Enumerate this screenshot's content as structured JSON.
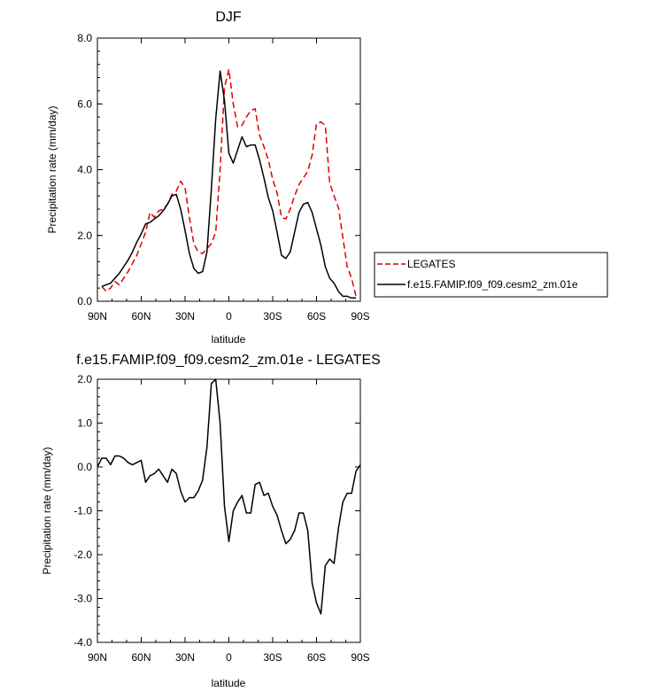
{
  "chart_data": [
    {
      "type": "line",
      "title": "DJF",
      "xlabel": "latitude",
      "ylabel": "Precipitation rate (mm/day)",
      "x_ticks": [
        "90N",
        "60N",
        "30N",
        "0",
        "30S",
        "60S",
        "90S"
      ],
      "y_ticks": [
        "0.0",
        "2.0",
        "4.0",
        "6.0",
        "8.0"
      ],
      "xlim": [
        90,
        -90
      ],
      "ylim": [
        0,
        8
      ],
      "legend_position": "right",
      "series": [
        {
          "name": "LEGATES",
          "color": "#dd0000",
          "dash": "dashed",
          "x": [
            87,
            84,
            81,
            78,
            75,
            72,
            69,
            66,
            63,
            60,
            57,
            54,
            51,
            48,
            45,
            42,
            39,
            36,
            33,
            30,
            27,
            24,
            21,
            18,
            15,
            12,
            9,
            6,
            3,
            0,
            -3,
            -6,
            -9,
            -12,
            -15,
            -18,
            -21,
            -24,
            -27,
            -30,
            -33,
            -36,
            -39,
            -42,
            -45,
            -48,
            -51,
            -54,
            -57,
            -60,
            -63,
            -66,
            -69,
            -72,
            -75,
            -78,
            -81,
            -84,
            -87
          ],
          "values": [
            0.45,
            0.3,
            0.4,
            0.6,
            0.5,
            0.7,
            0.9,
            1.15,
            1.4,
            1.75,
            2.1,
            2.7,
            2.55,
            2.75,
            2.8,
            2.95,
            3.25,
            3.35,
            3.65,
            3.45,
            2.55,
            1.75,
            1.5,
            1.45,
            1.6,
            1.75,
            2.1,
            4.0,
            6.5,
            7.05,
            6.0,
            5.3,
            5.35,
            5.6,
            5.8,
            5.85,
            5.05,
            4.7,
            4.3,
            3.7,
            3.3,
            2.55,
            2.5,
            2.8,
            3.2,
            3.55,
            3.75,
            3.95,
            4.45,
            5.4,
            5.45,
            5.35,
            3.6,
            3.2,
            2.85,
            1.95,
            1.05,
            0.7,
            0.15
          ]
        },
        {
          "name": "f.e15.FAMIP.f09_f09.cesm2_zm.01e",
          "color": "#000000",
          "dash": "solid",
          "x": [
            87,
            84,
            81,
            78,
            75,
            72,
            69,
            66,
            63,
            60,
            57,
            54,
            51,
            48,
            45,
            42,
            39,
            36,
            33,
            30,
            27,
            24,
            21,
            18,
            15,
            12,
            9,
            6,
            3,
            0,
            -3,
            -6,
            -9,
            -12,
            -15,
            -18,
            -21,
            -24,
            -27,
            -30,
            -33,
            -36,
            -39,
            -42,
            -45,
            -48,
            -51,
            -54,
            -57,
            -60,
            -63,
            -66,
            -69,
            -72,
            -75,
            -78,
            -81,
            -84,
            -87
          ],
          "values": [
            0.45,
            0.5,
            0.55,
            0.7,
            0.85,
            1.05,
            1.25,
            1.5,
            1.8,
            2.05,
            2.35,
            2.4,
            2.5,
            2.6,
            2.75,
            2.95,
            3.2,
            3.25,
            2.8,
            2.15,
            1.45,
            1.0,
            0.85,
            0.9,
            1.5,
            3.4,
            5.55,
            7.0,
            6.1,
            4.5,
            4.2,
            4.6,
            5.0,
            4.7,
            4.75,
            4.75,
            4.3,
            3.75,
            3.15,
            2.75,
            2.1,
            1.4,
            1.3,
            1.5,
            2.1,
            2.7,
            2.95,
            3.0,
            2.7,
            2.2,
            1.7,
            1.05,
            0.7,
            0.55,
            0.3,
            0.15,
            0.15,
            0.1,
            0.1
          ]
        }
      ]
    },
    {
      "type": "line",
      "title": "f.e15.FAMIP.f09_f09.cesm2_zm.01e - LEGATES",
      "xlabel": "latitude",
      "ylabel": "Precipitation rate (mm/day)",
      "x_ticks": [
        "90N",
        "60N",
        "30N",
        "0",
        "30S",
        "60S",
        "90S"
      ],
      "y_ticks": [
        "-4.0",
        "-3.0",
        "-2.0",
        "-1.0",
        "0.0",
        "1.0",
        "2.0"
      ],
      "xlim": [
        90,
        -90
      ],
      "ylim": [
        -4,
        2
      ],
      "series": [
        {
          "color": "#000000",
          "dash": "solid",
          "x": [
            90,
            87,
            84,
            81,
            78,
            75,
            72,
            69,
            66,
            63,
            60,
            57,
            54,
            51,
            48,
            45,
            42,
            39,
            36,
            33,
            30,
            27,
            24,
            21,
            18,
            15,
            12,
            9,
            6,
            3,
            0,
            -3,
            -6,
            -9,
            -12,
            -15,
            -18,
            -21,
            -24,
            -27,
            -30,
            -33,
            -36,
            -39,
            -42,
            -45,
            -48,
            -51,
            -54,
            -57,
            -60,
            -63,
            -66,
            -69,
            -72,
            -75,
            -78,
            -81,
            -84,
            -87,
            -90
          ],
          "values": [
            0.0,
            0.2,
            0.2,
            0.05,
            0.25,
            0.25,
            0.2,
            0.1,
            0.05,
            0.1,
            0.15,
            -0.35,
            -0.2,
            -0.15,
            -0.05,
            -0.2,
            -0.35,
            -0.05,
            -0.15,
            -0.55,
            -0.8,
            -0.7,
            -0.7,
            -0.55,
            -0.3,
            0.45,
            1.9,
            2.0,
            1.0,
            -0.9,
            -1.7,
            -1.0,
            -0.8,
            -0.65,
            -1.05,
            -1.05,
            -0.4,
            -0.35,
            -0.65,
            -0.6,
            -0.9,
            -1.1,
            -1.45,
            -1.75,
            -1.65,
            -1.45,
            -1.05,
            -1.05,
            -1.45,
            -2.65,
            -3.1,
            -3.35,
            -2.25,
            -2.1,
            -2.2,
            -1.4,
            -0.8,
            -0.6,
            -0.6,
            -0.1,
            0.05
          ]
        }
      ]
    }
  ]
}
